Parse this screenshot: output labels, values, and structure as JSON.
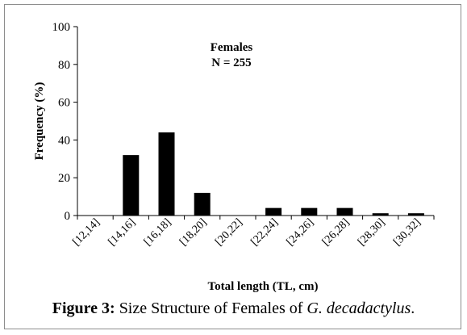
{
  "chart_data": {
    "type": "bar",
    "categories": [
      "[12,14]",
      "[14,16]",
      "[16,18]",
      "[18,20]",
      "[20,22]",
      "[22,24]",
      "[24,26]",
      "[26,28]",
      "[28,30]",
      "[30,32]"
    ],
    "values": [
      0,
      32,
      44,
      12,
      0,
      4,
      4,
      4,
      1.2,
      1.2
    ],
    "xlabel": "Total length (TL, cm)",
    "ylabel": "Frequency (%)",
    "ylim": [
      0,
      100
    ],
    "yticks": [
      0,
      20,
      40,
      60,
      80,
      100
    ],
    "annotation_title": "Females",
    "annotation_n": "N = 255",
    "bar_color": "#000000",
    "grid": false,
    "legend": "none"
  },
  "caption": {
    "label": "Figure 3:",
    "text": "Size Structure of Females of",
    "species": "G. decadactylus",
    "end": "."
  }
}
